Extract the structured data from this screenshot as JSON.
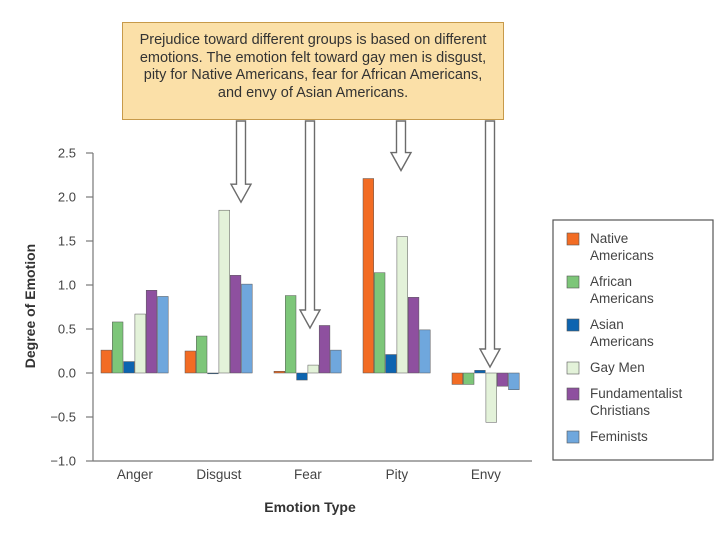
{
  "callout": {
    "text": "Prejudice toward different groups is based on different emotions. The emotion felt toward gay men is disgust, pity for Native Americans, fear for African Americans, and envy of Asian Americans."
  },
  "chart_data": {
    "type": "bar",
    "categories": [
      "Anger",
      "Disgust",
      "Fear",
      "Pity",
      "Envy"
    ],
    "series": [
      {
        "name": "Native Americans",
        "legend_lines": [
          "Native",
          "Americans"
        ],
        "color": "#f26c24",
        "values": [
          0.26,
          0.25,
          0.02,
          2.21,
          -0.13
        ]
      },
      {
        "name": "African Americans",
        "legend_lines": [
          "African",
          "Americans"
        ],
        "color": "#7dc679",
        "values": [
          0.58,
          0.42,
          0.88,
          1.14,
          -0.13
        ]
      },
      {
        "name": "Asian Americans",
        "legend_lines": [
          "Asian",
          "Americans"
        ],
        "color": "#0d64b0",
        "values": [
          0.13,
          0.0,
          -0.08,
          0.21,
          0.03
        ]
      },
      {
        "name": "Gay Men",
        "legend_lines": [
          "Gay Men"
        ],
        "color": "#e3f2d9",
        "values": [
          0.67,
          1.85,
          0.09,
          1.55,
          -0.56
        ]
      },
      {
        "name": "Fundamentalist Christians",
        "legend_lines": [
          "Fundamentalist",
          "Christians"
        ],
        "color": "#8e509f",
        "values": [
          0.94,
          1.11,
          0.54,
          0.86,
          -0.15
        ]
      },
      {
        "name": "Feminists",
        "legend_lines": [
          "Feminists"
        ],
        "color": "#6fa7dd",
        "values": [
          0.87,
          1.01,
          0.26,
          0.49,
          -0.19
        ]
      }
    ],
    "xlabel": "Emotion Type",
    "ylabel": "Degree of Emotion",
    "ylim": [
      -1.0,
      2.5
    ],
    "yticks": [
      2.5,
      2.0,
      1.5,
      1.0,
      0.5,
      0.0,
      -0.5,
      -1.0
    ],
    "ytick_labels": [
      "2.5",
      "2.0",
      "1.5",
      "1.0",
      "0.5",
      "0.0",
      "−0.5",
      "−1.0"
    ],
    "arrows_point_to": [
      "Disgust: Gay Men",
      "Fear: African Americans",
      "Pity: Native Americans",
      "Envy: Asian Americans"
    ],
    "legend_position": "right",
    "grid": false
  }
}
